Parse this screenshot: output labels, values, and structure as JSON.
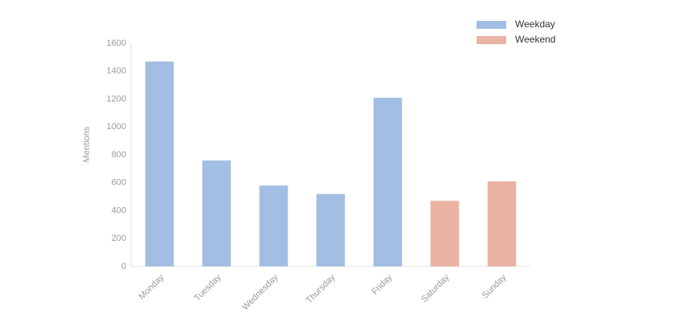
{
  "chart_data": {
    "type": "bar",
    "y_label": "Mentions",
    "categories": [
      "Monday",
      "Tuesday",
      "Wednesday",
      "Thursday",
      "Friday",
      "Saturday",
      "Sunday"
    ],
    "series": [
      {
        "name": "Weekday",
        "color": "#a3bee3",
        "values": [
          1470,
          760,
          580,
          520,
          1210,
          null,
          null
        ]
      },
      {
        "name": "Weekend",
        "color": "#eab3a3",
        "values": [
          null,
          null,
          null,
          null,
          null,
          470,
          610
        ]
      }
    ],
    "ylim": [
      0,
      1600
    ],
    "yticks": [
      0,
      200,
      400,
      600,
      800,
      1000,
      1200,
      1400,
      1600
    ],
    "grid": false,
    "legend": "top-right"
  }
}
